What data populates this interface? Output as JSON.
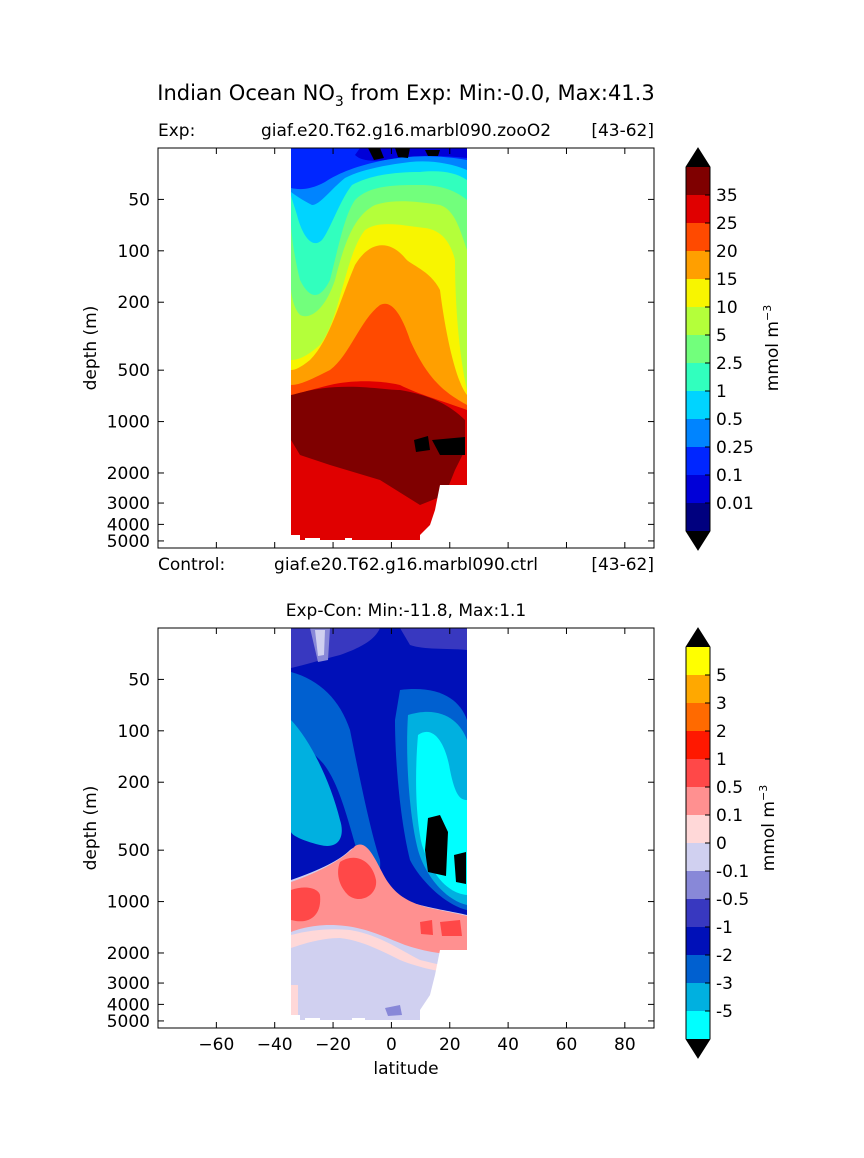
{
  "figure": {
    "title_prefix": "Indian Ocean NO",
    "title_sub": "3",
    "title_suffix": " from Exp: Min:-0.0, Max:41.3"
  },
  "chart_data": [
    {
      "type": "heatmap",
      "subplot": "top",
      "header_left": "Exp:",
      "header_center": "giaf.e20.T62.g16.marbl090.zooO2",
      "header_right": "[43-62]",
      "footer_left": "Control:",
      "footer_center": "giaf.e20.T62.g16.marbl090.ctrl",
      "footer_right": "[43-62]",
      "ylabel": "depth (m)",
      "y_scale": "log (inverted)",
      "y_ticks": [
        "50",
        "100",
        "200",
        "500",
        "1000",
        "2000",
        "3000",
        "4000",
        "5000"
      ],
      "xlim": [
        -80,
        90
      ],
      "ylim": [
        5500,
        25
      ],
      "data_extent_lat": [
        -34,
        26
      ],
      "colorbar": {
        "unit_base": "mmol m",
        "unit_exp": "−3",
        "extend": "both",
        "levels": [
          "0.01",
          "0.1",
          "0.25",
          "0.5",
          "1",
          "2.5",
          "5",
          "10",
          "15",
          "20",
          "25",
          "35"
        ],
        "colors": [
          "#00007f",
          "#0000d8",
          "#0026ff",
          "#0084ff",
          "#00d4ff",
          "#31ffbe",
          "#72ff7c",
          "#b4ff3a",
          "#f8f500",
          "#ff9f00",
          "#ff4a00",
          "#e00000",
          "#7f0000"
        ],
        "under_color": "#000000",
        "over_color": "#000000"
      }
    },
    {
      "type": "heatmap",
      "subplot": "bottom",
      "title": "Exp-Con: Min:-11.8, Max:1.1",
      "xlabel": "latitude",
      "ylabel": "depth (m)",
      "x_ticks": [
        "−60",
        "−40",
        "−20",
        "0",
        "20",
        "40",
        "60",
        "80"
      ],
      "y_scale": "log (inverted)",
      "y_ticks": [
        "50",
        "100",
        "200",
        "500",
        "1000",
        "2000",
        "3000",
        "4000",
        "5000"
      ],
      "xlim": [
        -80,
        90
      ],
      "ylim": [
        5500,
        25
      ],
      "data_extent_lat": [
        -34,
        26
      ],
      "colorbar": {
        "unit_base": "mmol m",
        "unit_exp": "−3",
        "extend": "both",
        "levels": [
          "-5",
          "-3",
          "-2",
          "-1",
          "-0.5",
          "-0.1",
          "0",
          "0.1",
          "0.5",
          "1",
          "2",
          "3",
          "5"
        ],
        "colors": [
          "#00ffff",
          "#00b0e0",
          "#0060d0",
          "#0010b8",
          "#3838c0",
          "#8888d8",
          "#d0d0f0",
          "#ffd8d8",
          "#ff9090",
          "#ff4848",
          "#ff1800",
          "#ff6a00",
          "#ffa800",
          "#ffff00"
        ],
        "under_color": "#000000",
        "over_color": "#000000"
      }
    }
  ]
}
